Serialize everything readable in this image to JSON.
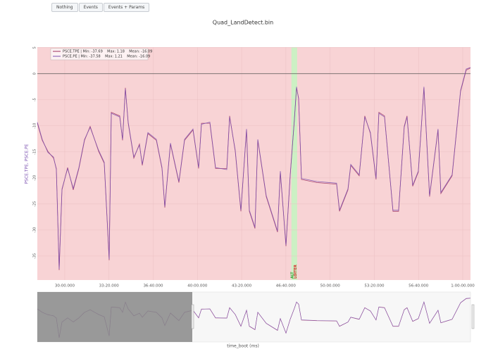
{
  "buttons": [
    "Nothing",
    "Events",
    "Events + Params"
  ],
  "chart_data": {
    "type": "line",
    "title": "Quad_LandDetect.bin",
    "xlabel": "time_boot (ms)",
    "ylabel": "PSCE.TPE, PSCE.PE",
    "xlim": [
      1676000,
      3635000
    ],
    "ylim": [
      -39.6,
      5.1
    ],
    "xticks": [
      {
        "value": 1800000,
        "label": "30:00.000"
      },
      {
        "value": 2000000,
        "label": "33:20.000"
      },
      {
        "value": 2200000,
        "label": "36:40.000"
      },
      {
        "value": 2400000,
        "label": "40:00.000"
      },
      {
        "value": 2600000,
        "label": "43:20.000"
      },
      {
        "value": 2800000,
        "label": "46:40.000"
      },
      {
        "value": 3000000,
        "label": "50:00.000"
      },
      {
        "value": 3200000,
        "label": "53:20.000"
      },
      {
        "value": 3400000,
        "label": "56:40.000"
      },
      {
        "value": 3600000,
        "label": "1:00:00.000"
      }
    ],
    "yticks": [
      5,
      0,
      -5,
      -10,
      -15,
      -20,
      -25,
      -30,
      -35
    ],
    "grid": true,
    "hline": 0,
    "background": "#f8d3d5",
    "shaded_range": [
      2825000,
      2851000
    ],
    "shaded_color": "#ccf0c4",
    "annotations": [
      {
        "text": "ALT",
        "x": 2829000,
        "color": "#2ca02c"
      },
      {
        "text": "LOITER",
        "x": 2844000,
        "color": "#d62728"
      }
    ],
    "x": [
      1676000,
      1698300,
      1723800,
      1749300,
      1762000,
      1774700,
      1787500,
      1813000,
      1838400,
      1863900,
      1889400,
      1914900,
      1953100,
      1978600,
      2000900,
      2010400,
      2048700,
      2061400,
      2074100,
      2086900,
      2112400,
      2137800,
      2150600,
      2176100,
      2214300,
      2239800,
      2252500,
      2278000,
      2316200,
      2341700,
      2379900,
      2405400,
      2418100,
      2456300,
      2481800,
      2532800,
      2545500,
      2571000,
      2596500,
      2622000,
      2634700,
      2660200,
      2672900,
      2711200,
      2762100,
      2774900,
      2800400,
      2819500,
      2838600,
      2848200,
      2857700,
      2870400,
      2940500,
      3029600,
      3042400,
      3080600,
      3093400,
      3131600,
      3157000,
      3182500,
      3208000,
      3220700,
      3246200,
      3284400,
      3309900,
      3335400,
      3348100,
      3373600,
      3399100,
      3424600,
      3450000,
      3488300,
      3501000,
      3552000,
      3590200,
      3615700,
      3634800
    ],
    "series": [
      {
        "name": "PSCE.TPE | Min: -37.69    Max: 1.18    Mean: -16.09",
        "color": "#9c2f5e",
        "values": [
          -9.5,
          -12.8,
          -14.9,
          -16.2,
          -18.2,
          -37.7,
          -22.3,
          -18.0,
          -22.3,
          -18.2,
          -12.8,
          -10.1,
          -14.9,
          -17.2,
          -35.8,
          -7.4,
          -8.1,
          -12.8,
          -2.7,
          -9.5,
          -16.2,
          -13.5,
          -17.6,
          -11.5,
          -12.8,
          -18.2,
          -25.7,
          -13.5,
          -20.9,
          -12.8,
          -10.8,
          -18.2,
          -9.5,
          -9.5,
          -18.2,
          -18.2,
          -8.1,
          -14.9,
          -26.4,
          -10.8,
          -26.4,
          -29.7,
          -12.8,
          -23.6,
          -30.4,
          -18.9,
          -33.1,
          -19.6,
          -8.8,
          -2.7,
          -4.7,
          -20.3,
          -20.9,
          -21.2,
          -26.4,
          -22.3,
          -17.6,
          -19.6,
          -8.1,
          -11.5,
          -20.3,
          -7.4,
          -8.1,
          -26.4,
          -26.4,
          -10.1,
          -8.1,
          -21.6,
          -18.9,
          -2.7,
          -23.6,
          -10.8,
          -23.0,
          -19.6,
          -3.4,
          0.7,
          1.1
        ]
      },
      {
        "name": "PSCE.PE | Min: -37.58    Max: 1.21    Mean: -16.09",
        "color": "#7a4fb0",
        "values": [
          -9.3,
          -12.6,
          -15.1,
          -16.0,
          -18.4,
          -37.5,
          -22.1,
          -18.2,
          -22.0,
          -18.0,
          -12.6,
          -10.3,
          -14.7,
          -17.0,
          -35.6,
          -7.6,
          -8.3,
          -12.6,
          -2.9,
          -9.3,
          -16.0,
          -13.7,
          -17.4,
          -11.3,
          -12.6,
          -18.0,
          -25.5,
          -13.3,
          -20.7,
          -12.6,
          -10.6,
          -18.0,
          -9.7,
          -9.3,
          -18.0,
          -18.4,
          -8.3,
          -14.7,
          -26.2,
          -10.6,
          -26.2,
          -29.5,
          -12.6,
          -23.4,
          -30.2,
          -18.7,
          -32.9,
          -19.4,
          -8.6,
          -2.5,
          -4.9,
          -20.1,
          -20.7,
          -21.0,
          -26.2,
          -22.1,
          -17.4,
          -19.4,
          -8.3,
          -11.3,
          -20.1,
          -7.6,
          -8.3,
          -26.2,
          -26.2,
          -10.3,
          -8.3,
          -21.4,
          -18.7,
          -2.5,
          -23.4,
          -10.6,
          -22.8,
          -19.4,
          -3.2,
          0.9,
          1.2
        ]
      }
    ]
  }
}
